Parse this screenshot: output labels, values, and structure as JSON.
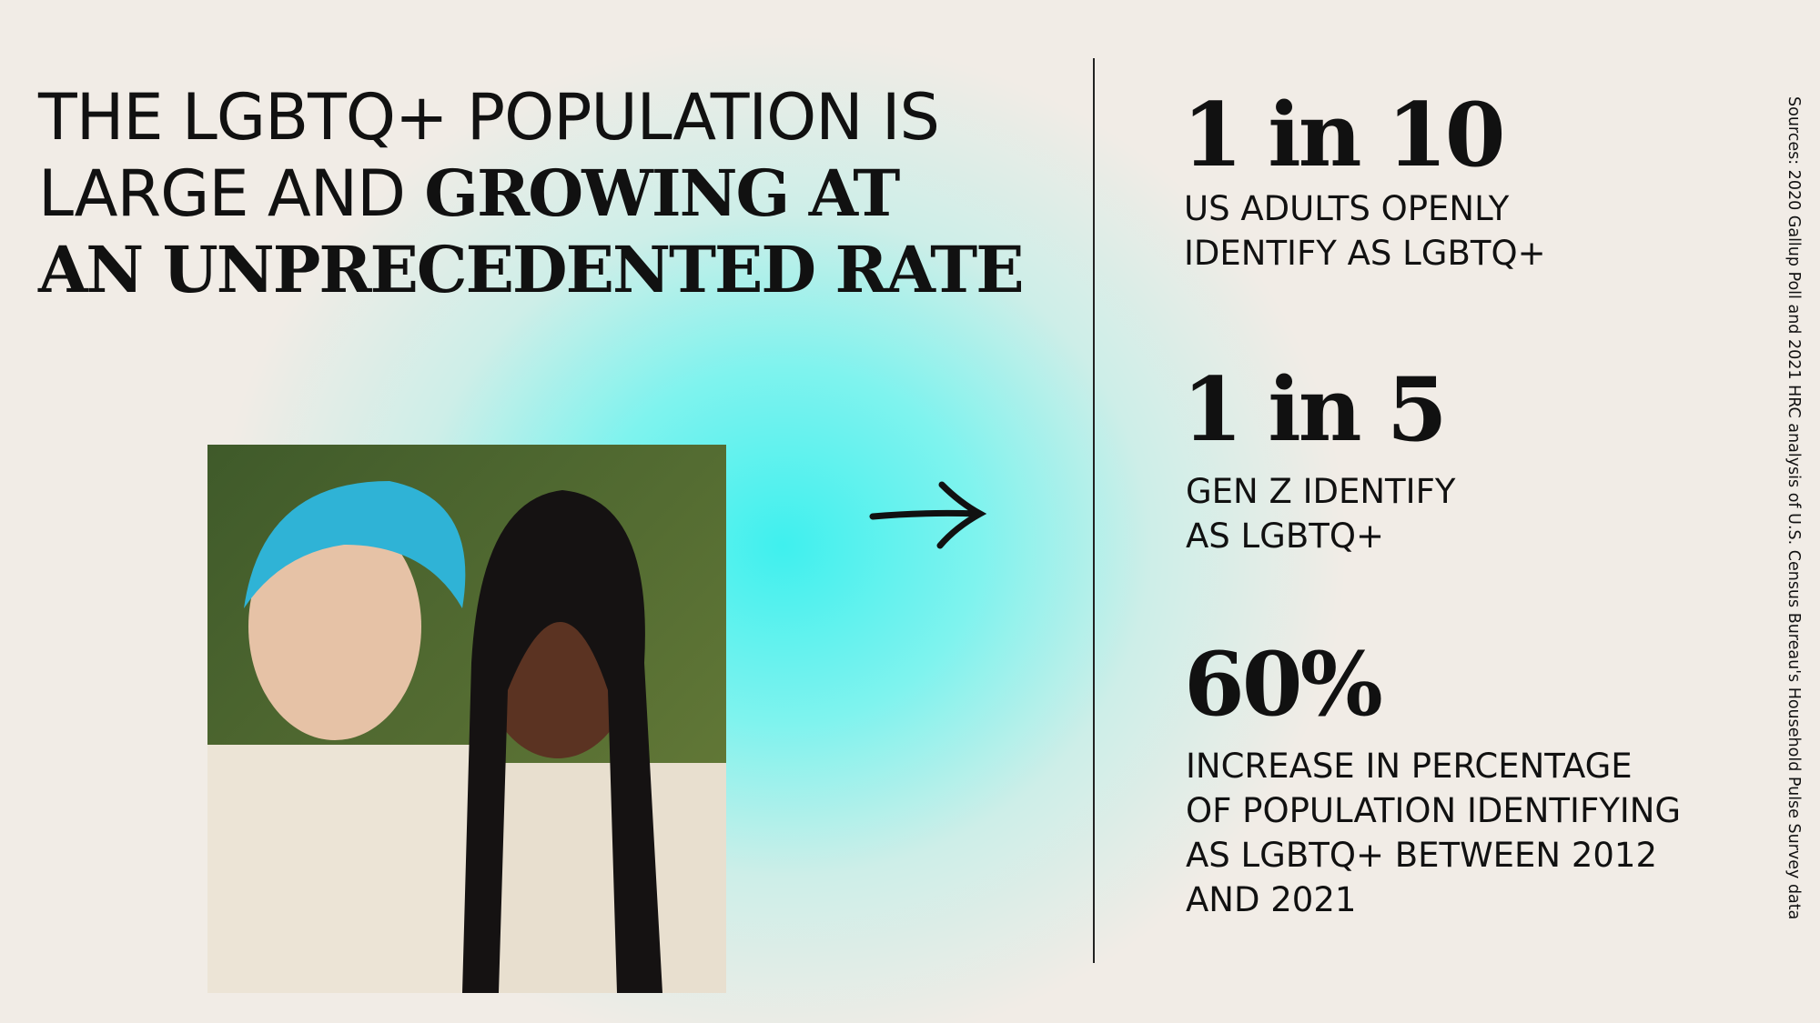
{
  "title": {
    "lines": [
      "THE LGBTQ+ POPULATION IS",
      "LARGE AND",
      "GROWING AT",
      "AN UNPRECEDENTED RATE"
    ]
  },
  "stats": [
    {
      "value": "1 in 10",
      "description": [
        "US ADULTS OPENLY",
        "IDENTIFY AS LGBTQ+"
      ]
    },
    {
      "value": "1 in 5",
      "description": [
        "GEN Z IDENTIFY",
        "AS LGBTQ+"
      ]
    },
    {
      "value": "60%",
      "description": [
        "INCREASE IN PERCENTAGE",
        "OF POPULATION IDENTIFYING",
        "AS LGBTQ+ BETWEEN 2012",
        "AND 2021"
      ]
    }
  ],
  "source": "Sources: 2020 Gallup Poll and 2021 HRC analysis of U.S. Census Bureau's Household Pulse Survey data"
}
